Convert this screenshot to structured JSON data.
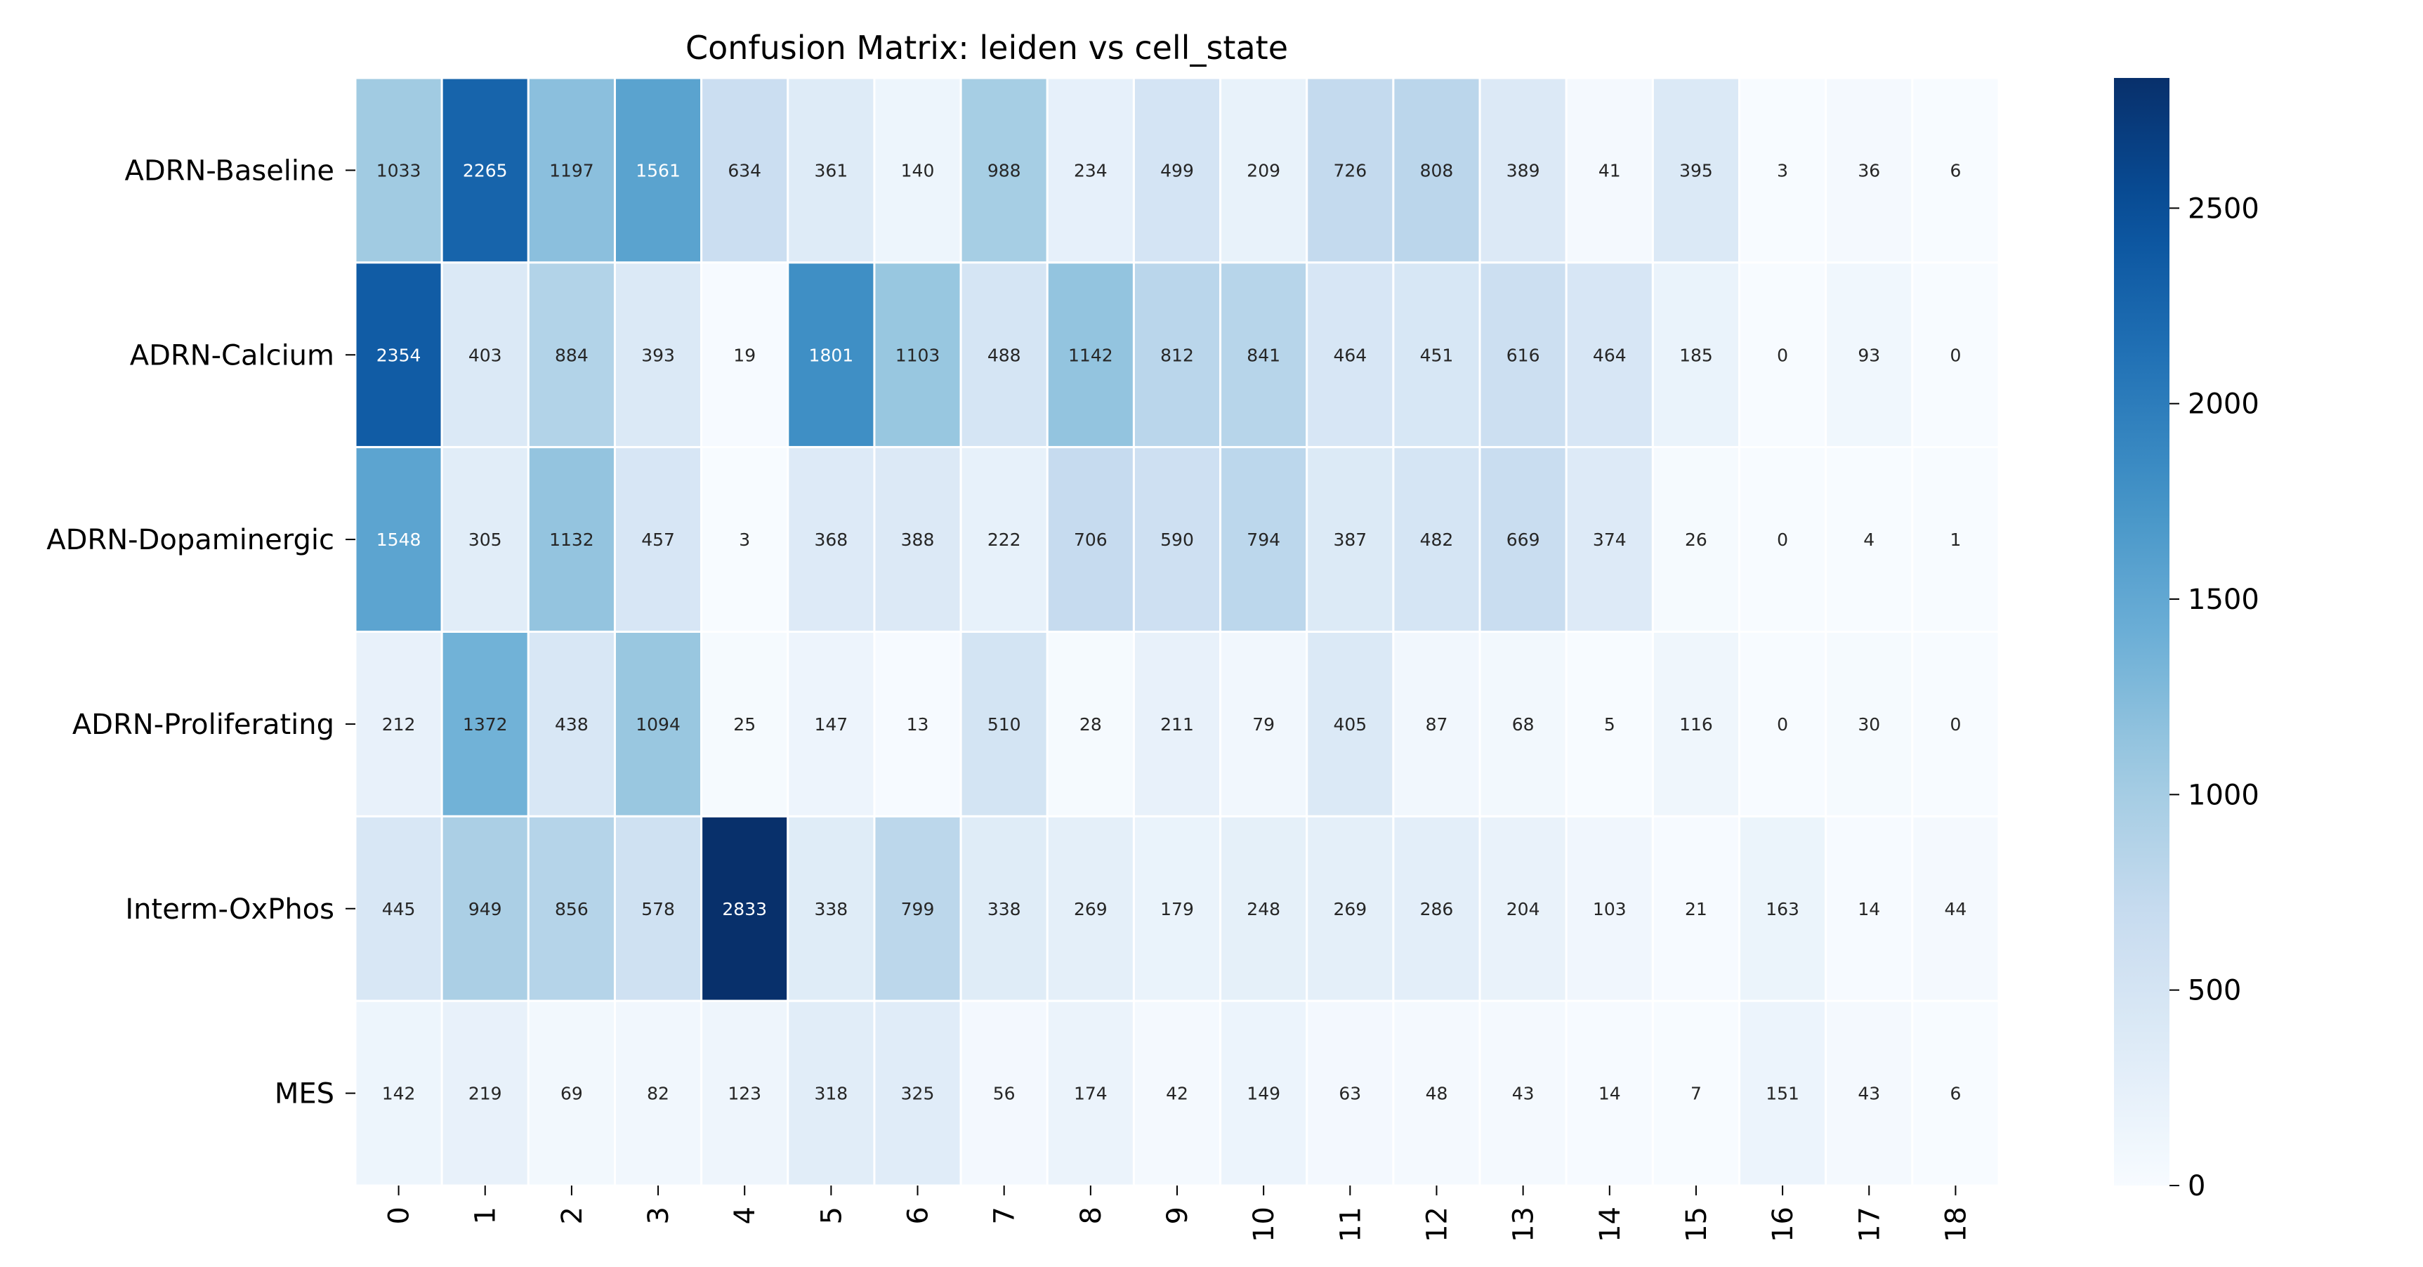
{
  "chart_data": {
    "type": "heatmap",
    "title": "Confusion Matrix: leiden vs cell_state",
    "xlabel": "",
    "ylabel": "",
    "x_categories": [
      "0",
      "1",
      "2",
      "3",
      "4",
      "5",
      "6",
      "7",
      "8",
      "9",
      "10",
      "11",
      "12",
      "13",
      "14",
      "15",
      "16",
      "17",
      "18"
    ],
    "y_categories": [
      "ADRN-Baseline",
      "ADRN-Calcium",
      "ADRN-Dopaminergic",
      "ADRN-Proliferating",
      "Interm-OxPhos",
      "MES"
    ],
    "values": [
      [
        1033,
        2265,
        1197,
        1561,
        634,
        361,
        140,
        988,
        234,
        499,
        209,
        726,
        808,
        389,
        41,
        395,
        3,
        36,
        6
      ],
      [
        2354,
        403,
        884,
        393,
        19,
        1801,
        1103,
        488,
        1142,
        812,
        841,
        464,
        451,
        616,
        464,
        185,
        0,
        93,
        0
      ],
      [
        1548,
        305,
        1132,
        457,
        3,
        368,
        388,
        222,
        706,
        590,
        794,
        387,
        482,
        669,
        374,
        26,
        0,
        4,
        1
      ],
      [
        212,
        1372,
        438,
        1094,
        25,
        147,
        13,
        510,
        28,
        211,
        79,
        405,
        87,
        68,
        5,
        116,
        0,
        30,
        0
      ],
      [
        445,
        949,
        856,
        578,
        2833,
        338,
        799,
        338,
        269,
        179,
        248,
        269,
        286,
        204,
        103,
        21,
        163,
        14,
        44
      ],
      [
        142,
        219,
        69,
        82,
        123,
        318,
        325,
        56,
        174,
        42,
        149,
        63,
        48,
        43,
        14,
        7,
        151,
        43,
        6
      ]
    ],
    "colormap": "Blues",
    "colorbar": {
      "range": [
        0,
        2833
      ],
      "ticks": [
        0,
        500,
        1000,
        1500,
        2000,
        2500
      ]
    },
    "cell_border_color": "#ffffff",
    "annotation_light_color": "#ffffff",
    "annotation_dark_color": "#262626",
    "grid": false
  }
}
